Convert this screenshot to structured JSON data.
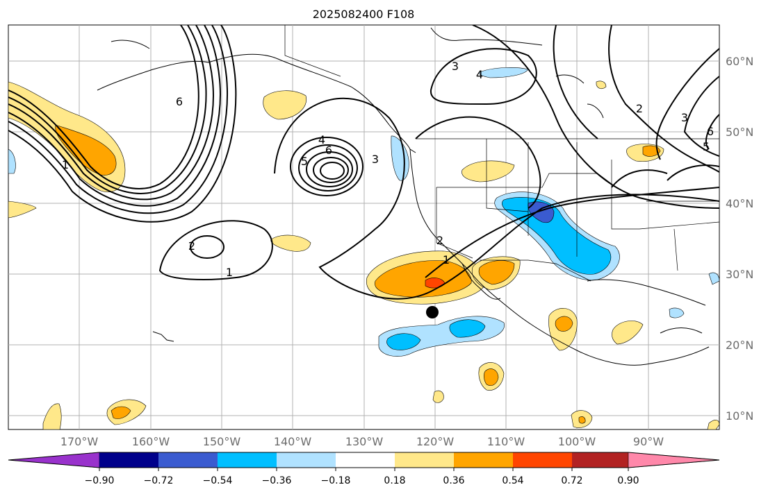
{
  "title": "2025082400 F108",
  "map": {
    "lon_labels": [
      "170°W",
      "160°W",
      "150°W",
      "140°W",
      "130°W",
      "120°W",
      "110°W",
      "100°W",
      "90°W"
    ],
    "lat_labels": [
      "60°N",
      "50°N",
      "40°N",
      "30°N",
      "20°N",
      "10°N"
    ],
    "contour_labels": [
      "1",
      "2",
      "3",
      "4",
      "5",
      "6"
    ],
    "marker": "storm-center-dot"
  },
  "colorbar": {
    "tick_labels": [
      "−0.90",
      "−0.72",
      "−0.54",
      "−0.36",
      "−0.18",
      "0.18",
      "0.36",
      "0.54",
      "0.72",
      "0.90"
    ],
    "colors": [
      "#9932cc",
      "#00008b",
      "#3a5bd0",
      "#00bfff",
      "#b0e2ff",
      "#ffffff",
      "#ffe88a",
      "#ffa500",
      "#ff4500",
      "#b22222",
      "#ff88aa"
    ]
  }
}
